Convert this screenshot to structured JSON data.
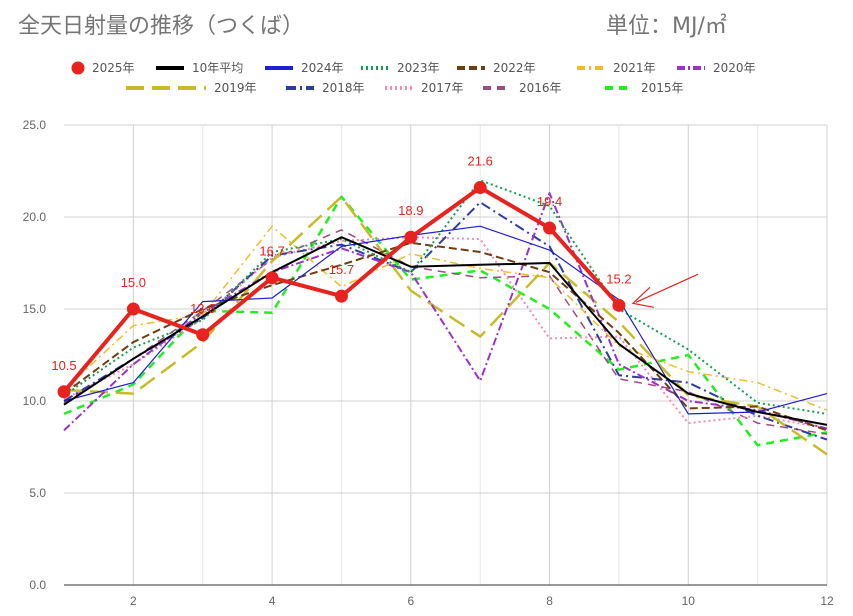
{
  "chart_data": {
    "type": "line",
    "title": "全天日射量の推移（つくば）",
    "unit": "単位：MJ/㎡",
    "xlim": [
      1,
      12
    ],
    "ylim": [
      0,
      25
    ],
    "x_ticks": [
      "2",
      "4",
      "6",
      "8",
      "10",
      "12"
    ],
    "y_ticks": [
      "0.0",
      "5.0",
      "10.0",
      "15.0",
      "20.0",
      "25.0"
    ],
    "grid": true,
    "legend_position": "top",
    "series": [
      {
        "name": "2015年",
        "color": "#22ee22",
        "dash": "8,6",
        "width": 2.5,
        "x": [
          1,
          2,
          3,
          4,
          5,
          6,
          7,
          8,
          9,
          10,
          11,
          12
        ],
        "values": [
          9.3,
          10.9,
          14.9,
          14.8,
          21.1,
          16.6,
          17.1,
          15.0,
          11.7,
          12.5,
          7.6,
          8.3
        ]
      },
      {
        "name": "2016年",
        "color": "#a04b7e",
        "dash": "8,6",
        "width": 1.5,
        "x": [
          1,
          2,
          3,
          4,
          5,
          6,
          7,
          8,
          9,
          10,
          11,
          12
        ],
        "values": [
          9.9,
          12.3,
          14.9,
          17.7,
          19.3,
          17.3,
          16.7,
          16.8,
          11.2,
          10.5,
          8.8,
          8.2
        ]
      },
      {
        "name": "2017年",
        "color": "#f28bb4",
        "dash": "2,3",
        "width": 2,
        "x": [
          1,
          2,
          3,
          4,
          5,
          6,
          7,
          8,
          9,
          10,
          11,
          12
        ],
        "values": [
          10.1,
          12.0,
          14.5,
          17.8,
          18.7,
          18.9,
          18.8,
          13.4,
          13.5,
          8.8,
          9.2,
          8.5
        ]
      },
      {
        "name": "2018年",
        "color": "#2c3e9e",
        "dash": "10,4,2,4",
        "width": 2,
        "x": [
          1,
          2,
          3,
          4,
          5,
          6,
          7,
          8,
          9,
          10,
          11,
          12
        ],
        "values": [
          10.0,
          12.3,
          14.5,
          17.9,
          18.5,
          17.0,
          20.8,
          18.4,
          11.4,
          11.0,
          9.2,
          7.9
        ]
      },
      {
        "name": "2019年",
        "color": "#c8bb2a",
        "dash": "18,8",
        "width": 2.5,
        "x": [
          1,
          2,
          3,
          4,
          5,
          6,
          7,
          8,
          9,
          10,
          11,
          12
        ],
        "values": [
          10.6,
          10.4,
          13.2,
          17.6,
          21.1,
          16.0,
          13.5,
          17.5,
          14.3,
          10.3,
          9.7,
          7.1
        ]
      },
      {
        "name": "2020年",
        "color": "#9b33c9",
        "dash": "8,3,2,3",
        "width": 2,
        "x": [
          1,
          2,
          3,
          4,
          5,
          6,
          7,
          8,
          9,
          10,
          11,
          12
        ],
        "values": [
          8.4,
          12.0,
          14.8,
          17.0,
          18.3,
          17.0,
          11.1,
          21.3,
          12.0,
          10.0,
          9.5,
          8.5
        ]
      },
      {
        "name": "2021年",
        "color": "#f0bc2e",
        "dash": "8,4,2,4",
        "width": 1.5,
        "x": [
          1,
          2,
          3,
          4,
          5,
          6,
          7,
          8,
          9,
          10,
          11,
          12
        ],
        "values": [
          10.6,
          14.1,
          14.7,
          19.5,
          16.2,
          18.0,
          17.2,
          16.7,
          13.0,
          11.6,
          11.0,
          9.5
        ]
      },
      {
        "name": "2022年",
        "color": "#6e3d10",
        "dash": "8,4",
        "width": 2,
        "x": [
          1,
          2,
          3,
          4,
          5,
          6,
          7,
          8,
          9,
          10,
          11,
          12
        ],
        "values": [
          10.4,
          13.2,
          15.0,
          16.3,
          17.4,
          18.6,
          18.1,
          17.0,
          13.7,
          9.6,
          9.7,
          8.4
        ]
      },
      {
        "name": "2023年",
        "color": "#1a9c52",
        "dash": "2,3",
        "width": 2,
        "x": [
          1,
          2,
          3,
          4,
          5,
          6,
          7,
          8,
          9,
          10,
          11,
          12
        ],
        "values": [
          10.3,
          12.9,
          14.4,
          18.1,
          18.8,
          17.0,
          22.0,
          20.6,
          15.0,
          12.8,
          9.9,
          9.3
        ]
      },
      {
        "name": "2024年",
        "color": "#1f1fd6",
        "dash": "",
        "width": 1.2,
        "x": [
          1,
          2,
          3,
          4,
          5,
          6,
          7,
          8,
          9,
          10,
          11,
          12
        ],
        "values": [
          10.0,
          11.0,
          15.4,
          15.6,
          18.4,
          19.0,
          19.5,
          18.2,
          15.5,
          9.3,
          9.4,
          10.4
        ]
      },
      {
        "name": "10年平均",
        "color": "#000000",
        "dash": "",
        "width": 2,
        "x": [
          1,
          2,
          3,
          4,
          5,
          6,
          7,
          8,
          9,
          10,
          11,
          12
        ],
        "values": [
          9.8,
          12.3,
          14.6,
          17.0,
          18.9,
          17.3,
          17.4,
          17.5,
          13.1,
          10.4,
          9.4,
          8.7
        ]
      },
      {
        "name": "2025年",
        "color": "#e8231f",
        "dash": "",
        "width": 4,
        "marker": true,
        "labels": true,
        "x": [
          1,
          2,
          3,
          4,
          5,
          6,
          7,
          8,
          9
        ],
        "values": [
          10.5,
          15.0,
          13.6,
          16.7,
          15.7,
          18.9,
          21.6,
          19.4,
          15.2
        ]
      }
    ],
    "legend_order": [
      "2025年",
      "10年平均",
      "2024年",
      "2023年",
      "2022年",
      "2021年",
      "2020年",
      "2019年",
      "2018年",
      "2017年",
      "2016年",
      "2015年"
    ],
    "annotation": {
      "type": "arrow",
      "color": "#e8231f",
      "target": {
        "x": 9,
        "y": 15.2
      }
    }
  }
}
